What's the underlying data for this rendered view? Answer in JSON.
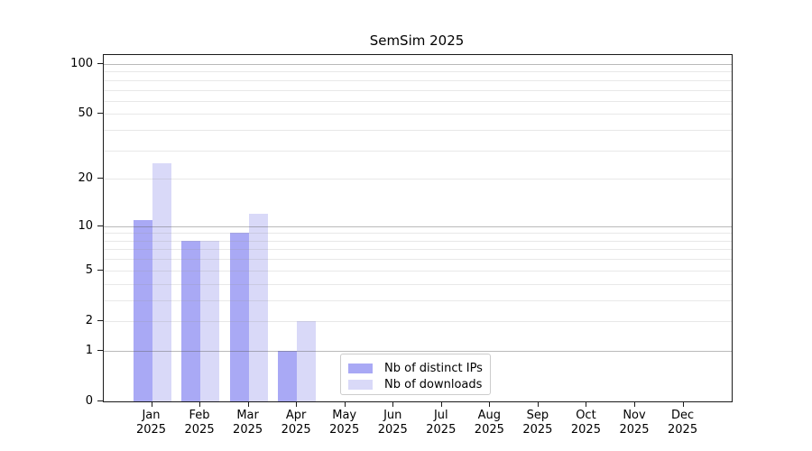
{
  "title": "SemSim 2025",
  "chart_data": {
    "type": "bar",
    "title": "SemSim 2025",
    "categories": [
      "Jan 2025",
      "Feb 2025",
      "Mar 2025",
      "Apr 2025",
      "May 2025",
      "Jun 2025",
      "Jul 2025",
      "Aug 2025",
      "Sep 2025",
      "Oct 2025",
      "Nov 2025",
      "Dec 2025"
    ],
    "series": [
      {
        "name": "Nb of distinct IPs",
        "color": "#a9a9f5",
        "values": [
          11,
          8,
          9,
          1,
          0,
          0,
          0,
          0,
          0,
          0,
          0,
          0
        ]
      },
      {
        "name": "Nb of downloads",
        "color": "#d9d9f8",
        "values": [
          25,
          8,
          12,
          2,
          0,
          0,
          0,
          0,
          0,
          0,
          0,
          0
        ]
      }
    ],
    "yscale": "log(1+v)",
    "ylim": [
      0,
      113
    ],
    "y_ticks": [
      0,
      1,
      2,
      5,
      10,
      20,
      50,
      100
    ],
    "y_major_gridlines": [
      1,
      10,
      100
    ],
    "y_minor_gridlines": [
      2,
      3,
      4,
      5,
      6,
      7,
      8,
      9,
      20,
      30,
      40,
      50,
      60,
      70,
      80,
      90
    ],
    "grid": true,
    "legend_position": "inside lower center",
    "legend": [
      "Nb of distinct IPs",
      "Nb of downloads"
    ]
  }
}
